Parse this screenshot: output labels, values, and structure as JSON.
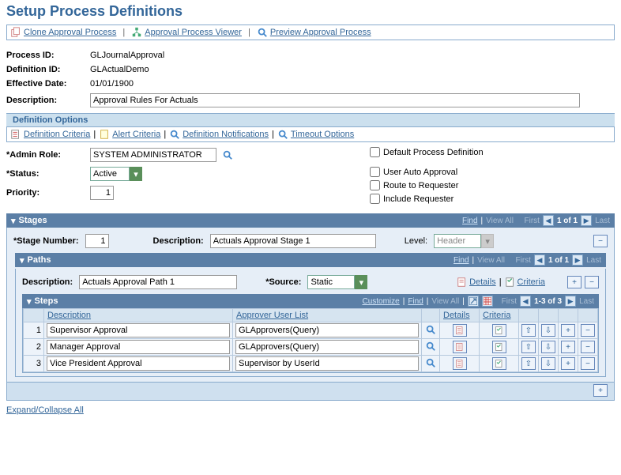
{
  "page": {
    "title": "Setup Process Definitions",
    "toolbar": {
      "clone": "Clone Approval Process",
      "viewer": "Approval Process Viewer",
      "preview": "Preview Approval Process"
    },
    "expand_collapse": "Expand/Collapse All"
  },
  "header": {
    "process_id_label": "Process ID:",
    "process_id_value": "GLJournalApproval",
    "definition_id_label": "Definition ID:",
    "definition_id_value": "GLActualDemo",
    "effective_date_label": "Effective Date:",
    "effective_date_value": "01/01/1900",
    "description_label": "Description:",
    "description_value": "Approval Rules For Actuals"
  },
  "definition_options": {
    "section_title": "Definition Options",
    "criteria": "Definition Criteria",
    "alert": "Alert Criteria",
    "notifications": "Definition Notifications",
    "timeout": "Timeout Options",
    "admin_role_label": "*Admin Role:",
    "admin_role_value": "SYSTEM ADMINISTRATOR",
    "status_label": "*Status:",
    "status_value": "Active",
    "priority_label": "Priority:",
    "priority_value": "1",
    "default_process": "Default Process Definition",
    "user_auto": "User Auto Approval",
    "route_requester": "Route to Requester",
    "include_requester": "Include Requester"
  },
  "stages": {
    "title": "Stages",
    "find": "Find",
    "view_all": "View All",
    "first": "First",
    "last": "Last",
    "counter": "1 of 1",
    "stage_number_label": "*Stage Number:",
    "stage_number_value": "1",
    "description_label": "Description:",
    "description_value": "Actuals Approval Stage 1",
    "level_label": "Level:",
    "level_value": "Header"
  },
  "paths": {
    "title": "Paths",
    "find": "Find",
    "view_all": "View All",
    "first": "First",
    "last": "Last",
    "counter": "1 of 1",
    "description_label": "Description:",
    "description_value": "Actuals Approval Path 1",
    "source_label": "*Source:",
    "source_value": "Static",
    "details": "Details",
    "criteria": "Criteria"
  },
  "steps": {
    "title": "Steps",
    "customize": "Customize",
    "find": "Find",
    "view_all": "View All",
    "first": "First",
    "last": "Last",
    "counter": "1-3 of 3",
    "columns": {
      "description": "Description",
      "approver": "Approver User List",
      "details": "Details",
      "criteria": "Criteria"
    },
    "rows": [
      {
        "n": "1",
        "desc": "Supervisor Approval",
        "approver": "GLApprovers(Query)"
      },
      {
        "n": "2",
        "desc": "Manager Approval",
        "approver": "GLApprovers(Query)"
      },
      {
        "n": "3",
        "desc": "Vice President Approval",
        "approver": "Supervisor by UserId"
      }
    ]
  },
  "colors": {
    "header_blue": "#336699",
    "bar_blue": "#5b7fa6",
    "light_blue": "#e6eef7",
    "section_blue": "#cce0ee"
  }
}
